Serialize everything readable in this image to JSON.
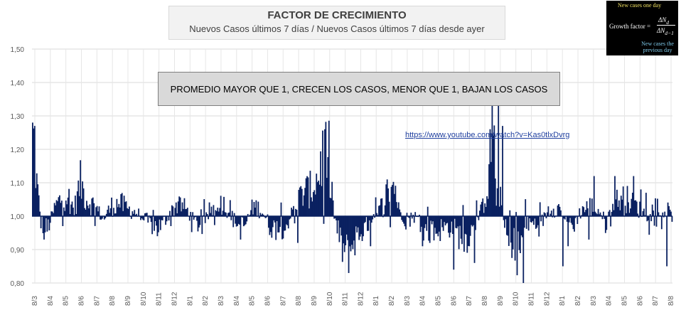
{
  "chart_data": {
    "type": "bar",
    "title": "FACTOR DE CRECIMIENTO",
    "subtitle": "Nuevos Casos últimos 7 días / Nuevos Casos últimos 7 días desde ayer",
    "baseline": 1.0,
    "ylim": [
      0.8,
      1.5
    ],
    "yticks": [
      "0,80",
      "0,90",
      "1,00",
      "1,10",
      "1,20",
      "1,30",
      "1,40",
      "1,50"
    ],
    "xticks": [
      "8/3",
      "8/4",
      "8/5",
      "8/6",
      "8/7",
      "8/8",
      "8/9",
      "8/10",
      "8/11",
      "8/12",
      "8/1",
      "8/2",
      "8/3",
      "8/4",
      "8/5",
      "8/6",
      "8/7",
      "8/8",
      "8/9",
      "8/10",
      "8/11",
      "8/12",
      "8/1",
      "8/2",
      "8/3",
      "8/4",
      "8/5",
      "8/6",
      "8/7",
      "8/8",
      "8/9",
      "8/10",
      "8/11",
      "8/12",
      "8/1",
      "8/2",
      "8/3",
      "8/4",
      "8/5",
      "8/6",
      "8/7",
      "8/8"
    ],
    "gridlines": true,
    "bar_color": "#0a2161",
    "annotation": "PROMEDIO MAYOR QUE 1, CRECEN LOS CASOS, MENOR QUE 1, BAJAN LOS CASOS",
    "link": "https://www.youtube.com/watch?v=Kas0tlxDvrg",
    "anchors": [
      [
        0,
        1.27
      ],
      [
        4,
        1.1
      ],
      [
        8,
        0.98
      ],
      [
        14,
        0.96
      ],
      [
        22,
        1.03
      ],
      [
        32,
        1.07
      ],
      [
        40,
        1.02
      ],
      [
        46,
        1.1
      ],
      [
        52,
        1.05
      ],
      [
        60,
        1.03
      ],
      [
        68,
        0.99
      ],
      [
        76,
        1.03
      ],
      [
        84,
        1.04
      ],
      [
        92,
        1.02
      ],
      [
        100,
        1.01
      ],
      [
        108,
        0.99
      ],
      [
        116,
        0.97
      ],
      [
        124,
        0.97
      ],
      [
        132,
        1.01
      ],
      [
        140,
        1.04
      ],
      [
        148,
        1.02
      ],
      [
        156,
        0.98
      ],
      [
        164,
        0.97
      ],
      [
        172,
        1.02
      ],
      [
        180,
        1.05
      ],
      [
        188,
        1.02
      ],
      [
        196,
        0.98
      ],
      [
        204,
        0.97
      ],
      [
        212,
        1.03
      ],
      [
        220,
        1.02
      ],
      [
        228,
        0.97
      ],
      [
        236,
        0.96
      ],
      [
        244,
        0.97
      ],
      [
        252,
        1.03
      ],
      [
        260,
        1.07
      ],
      [
        268,
        1.08
      ],
      [
        275,
        1.12
      ],
      [
        280,
        1.2
      ],
      [
        285,
        1.18
      ],
      [
        290,
        1.0
      ],
      [
        296,
        0.92
      ],
      [
        302,
        0.88
      ],
      [
        310,
        0.93
      ],
      [
        318,
        0.96
      ],
      [
        326,
        0.97
      ],
      [
        334,
        1.02
      ],
      [
        342,
        1.08
      ],
      [
        348,
        1.1
      ],
      [
        352,
        1.02
      ],
      [
        360,
        0.98
      ],
      [
        368,
        1.0
      ],
      [
        376,
        0.96
      ],
      [
        384,
        0.95
      ],
      [
        392,
        0.96
      ],
      [
        400,
        0.97
      ],
      [
        408,
        0.95
      ],
      [
        416,
        0.93
      ],
      [
        424,
        0.96
      ],
      [
        432,
        1.02
      ],
      [
        438,
        1.1
      ],
      [
        442,
        1.24
      ],
      [
        446,
        1.16
      ],
      [
        450,
        1.05
      ],
      [
        456,
        0.93
      ],
      [
        462,
        0.88
      ],
      [
        468,
        0.9
      ],
      [
        474,
        0.97
      ],
      [
        480,
        0.98
      ],
      [
        488,
        0.97
      ],
      [
        496,
        1.02
      ],
      [
        504,
        1.03
      ],
      [
        512,
        1.0
      ],
      [
        520,
        0.97
      ],
      [
        528,
        1.02
      ],
      [
        536,
        1.03
      ],
      [
        544,
        1.02
      ],
      [
        552,
        0.98
      ],
      [
        560,
        1.04
      ],
      [
        568,
        1.06
      ],
      [
        576,
        1.04
      ],
      [
        584,
        1.02
      ],
      [
        592,
        1.0
      ],
      [
        600,
        0.99
      ],
      [
        608,
        1.02
      ],
      [
        615,
        1.0
      ]
    ],
    "spikes": [
      [
        0,
        1.28
      ],
      [
        2,
        1.27
      ],
      [
        11,
        0.93
      ],
      [
        281,
        1.26
      ],
      [
        442,
        1.37
      ],
      [
        448,
        1.34
      ],
      [
        452,
        1.27
      ],
      [
        472,
        0.8
      ],
      [
        510,
        0.85
      ],
      [
        540,
        1.12
      ],
      [
        560,
        1.12
      ],
      [
        578,
        1.12
      ],
      [
        585,
        1.08
      ],
      [
        590,
        1.07
      ],
      [
        610,
        0.85
      ],
      [
        120,
        0.94
      ],
      [
        200,
        0.93
      ],
      [
        255,
        0.92
      ],
      [
        375,
        0.91
      ],
      [
        405,
        0.84
      ],
      [
        425,
        0.86
      ],
      [
        325,
        0.91
      ],
      [
        515,
        0.91
      ],
      [
        535,
        0.93
      ]
    ],
    "n_points": 616
  }
}
